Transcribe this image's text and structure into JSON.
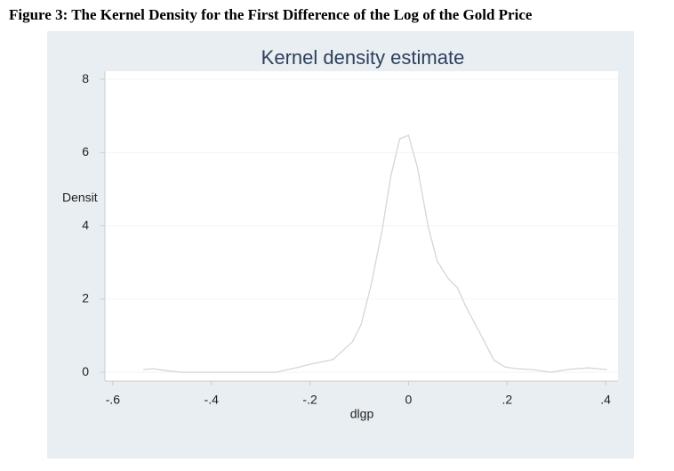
{
  "caption": "Figure 3: The Kernel Density for the First Difference of the Log of the Gold Price",
  "chart_data": {
    "type": "line",
    "title": "Kernel density estimate",
    "x_label": "dlgp",
    "y_label": "Densit",
    "x": [
      -0.538,
      -0.519,
      -0.496,
      -0.46,
      -0.27,
      -0.235,
      -0.2,
      -0.153,
      -0.114,
      -0.096,
      -0.076,
      -0.054,
      -0.036,
      -0.018,
      0,
      0.018,
      0.04,
      0.058,
      0.081,
      0.099,
      0.117,
      0.141,
      0.173,
      0.195,
      0.217,
      0.253,
      0.289,
      0.325,
      0.366,
      0.403
    ],
    "series": [
      {
        "color": "#d6d6d6",
        "values": [
          0.07,
          0.1,
          0.05,
          0,
          0,
          0.1,
          0.22,
          0.35,
          0.83,
          1.31,
          2.38,
          3.84,
          5.35,
          6.37,
          6.47,
          5.6,
          3.97,
          3.04,
          2.55,
          2.31,
          1.78,
          1.17,
          0.34,
          0.15,
          0.1,
          0.07,
          0,
          0.08,
          0.12,
          0.07
        ]
      }
    ],
    "xlim": [
      -0.616,
      0.425
    ],
    "ylim": [
      -0.24,
      8.22
    ],
    "xticks": [
      {
        "value": -0.6,
        "label": "-.6"
      },
      {
        "value": -0.4,
        "label": "-.4"
      },
      {
        "value": -0.2,
        "label": "-.2"
      },
      0,
      {
        "value": 0.2,
        "label": ".2"
      },
      {
        "value": 0.4,
        "label": ".4"
      }
    ],
    "yticks": [
      0,
      2,
      4,
      6,
      8
    ],
    "grid": true
  }
}
